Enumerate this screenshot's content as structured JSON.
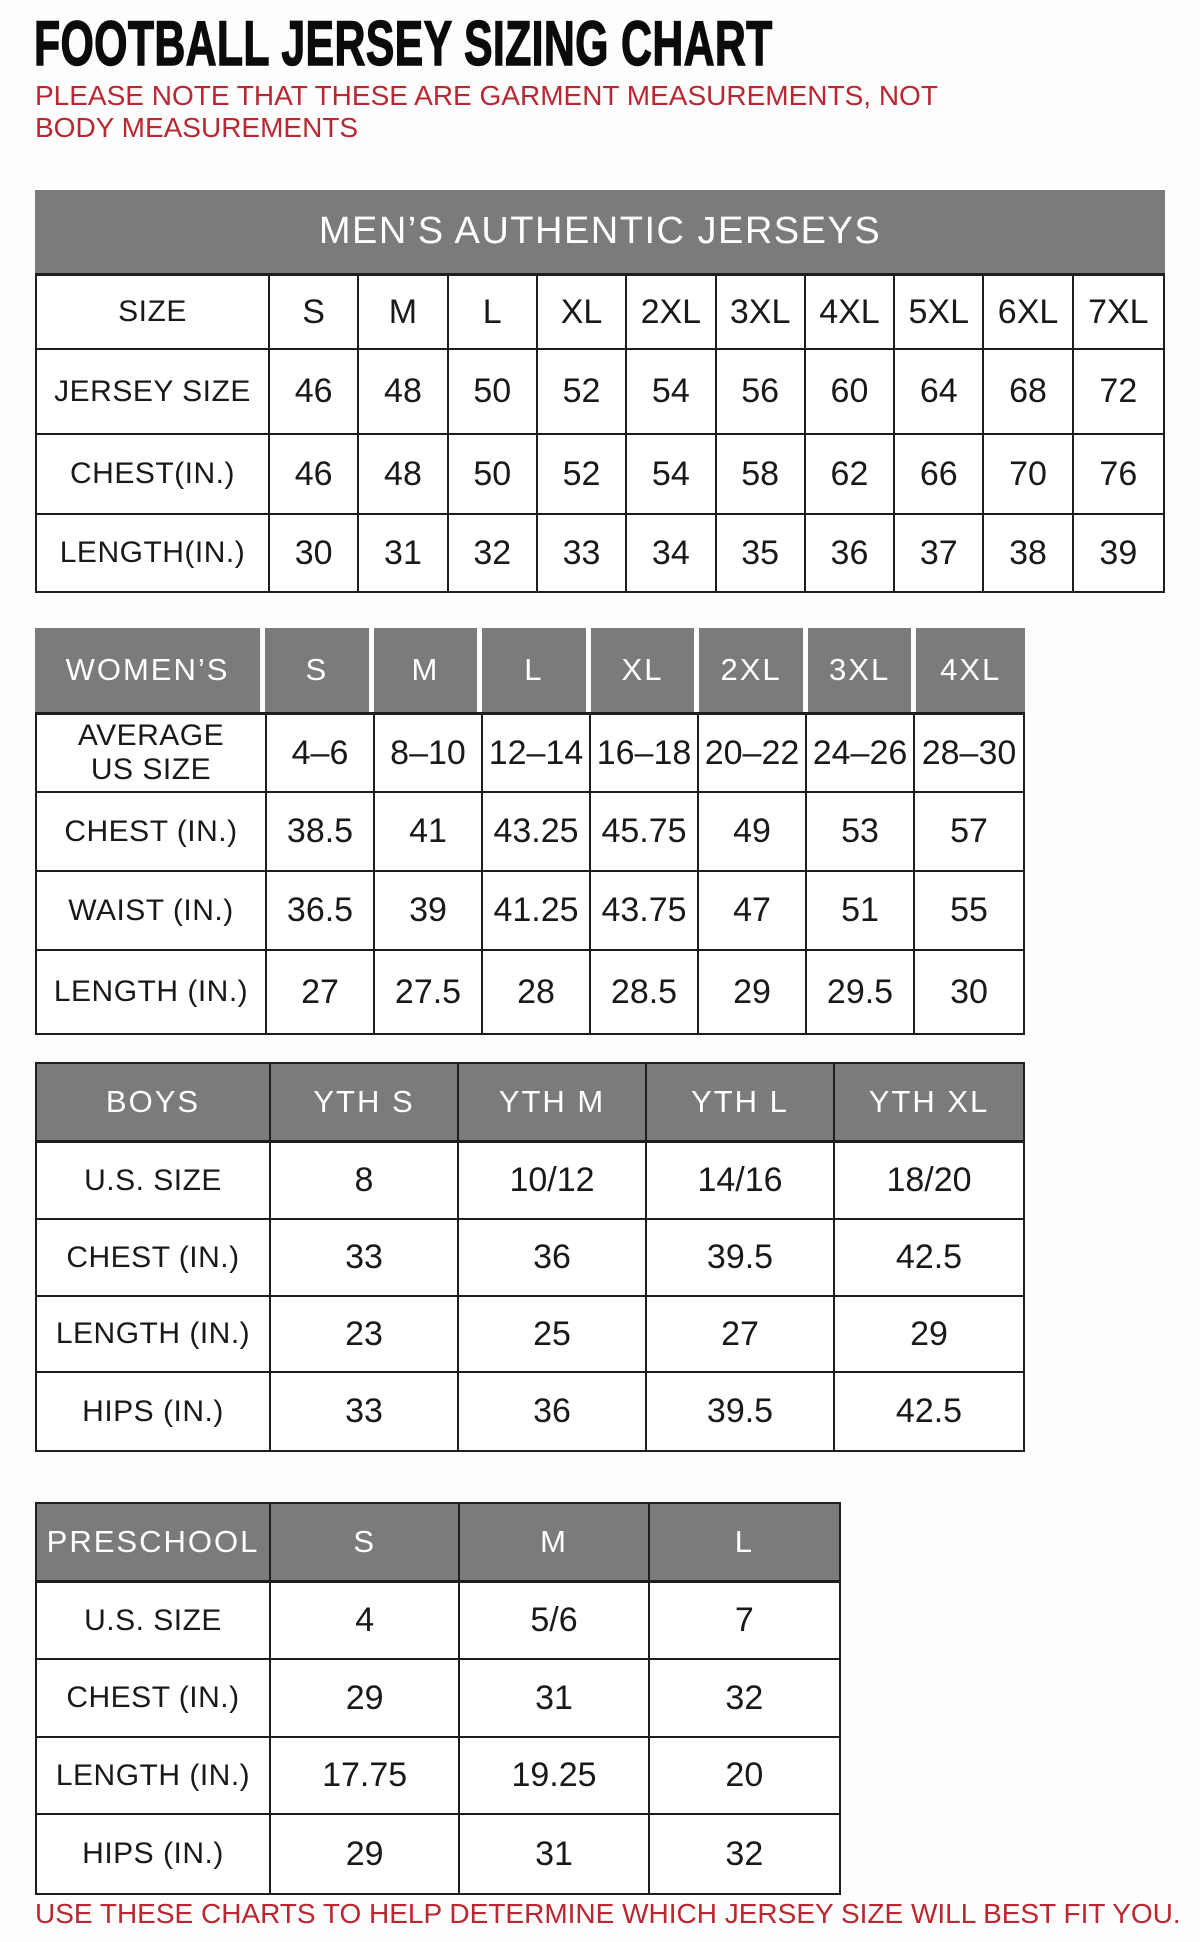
{
  "title": "FOOTBALL JERSEY SIZING CHART",
  "notes": {
    "top": "PLEASE NOTE THAT THESE ARE GARMENT MEASUREMENTS, NOT BODY MEASUREMENTS",
    "bottom": "USE THESE CHARTS TO HELP DETERMINE WHICH JERSEY SIZE WILL BEST FIT YOU."
  },
  "colors": {
    "header_gray": "#7b7b7b",
    "header_text": "#ffffff",
    "accent_red": "#bb2731",
    "border_dark": "#1e1e1e",
    "text_dark": "#191919",
    "background": "#fdfdfd"
  },
  "tables": [
    {
      "id": "mens",
      "banner": "MEN’S AUTHENTIC JERSEYS",
      "rows": [
        [
          "SIZE",
          "S",
          "M",
          "L",
          "XL",
          "2XL",
          "3XL",
          "4XL",
          "5XL",
          "6XL",
          "7XL"
        ],
        [
          "JERSEY SIZE",
          "46",
          "48",
          "50",
          "52",
          "54",
          "56",
          "60",
          "64",
          "68",
          "72"
        ],
        [
          "CHEST(IN.)",
          "46",
          "48",
          "50",
          "52",
          "54",
          "58",
          "62",
          "66",
          "70",
          "76"
        ],
        [
          "LENGTH(IN.)",
          "30",
          "31",
          "32",
          "33",
          "34",
          "35",
          "36",
          "37",
          "38",
          "39"
        ]
      ]
    },
    {
      "id": "womens",
      "header": [
        "WOMEN’S",
        "S",
        "M",
        "L",
        "XL",
        "2XL",
        "3XL",
        "4XL"
      ],
      "rows": [
        [
          "AVERAGE\nUS SIZE",
          "4–6",
          "8–10",
          "12–14",
          "16–18",
          "20–22",
          "24–26",
          "28–30"
        ],
        [
          "CHEST (IN.)",
          "38.5",
          "41",
          "43.25",
          "45.75",
          "49",
          "53",
          "57"
        ],
        [
          "WAIST (IN.)",
          "36.5",
          "39",
          "41.25",
          "43.75",
          "47",
          "51",
          "55"
        ],
        [
          "LENGTH (IN.)",
          "27",
          "27.5",
          "28",
          "28.5",
          "29",
          "29.5",
          "30"
        ]
      ]
    },
    {
      "id": "boys",
      "header": [
        "BOYS",
        "YTH S",
        "YTH M",
        "YTH L",
        "YTH XL"
      ],
      "rows": [
        [
          "U.S. SIZE",
          "8",
          "10/12",
          "14/16",
          "18/20"
        ],
        [
          "CHEST (IN.)",
          "33",
          "36",
          "39.5",
          "42.5"
        ],
        [
          "LENGTH (IN.)",
          "23",
          "25",
          "27",
          "29"
        ],
        [
          "HIPS (IN.)",
          "33",
          "36",
          "39.5",
          "42.5"
        ]
      ]
    },
    {
      "id": "preschool",
      "header": [
        "PRESCHOOL",
        "S",
        "M",
        "L"
      ],
      "rows": [
        [
          "U.S. SIZE",
          "4",
          "5/6",
          "7"
        ],
        [
          "CHEST (IN.)",
          "29",
          "31",
          "32"
        ],
        [
          "LENGTH (IN.)",
          "17.75",
          "19.25",
          "20"
        ],
        [
          "HIPS (IN.)",
          "29",
          "31",
          "32"
        ]
      ]
    }
  ]
}
